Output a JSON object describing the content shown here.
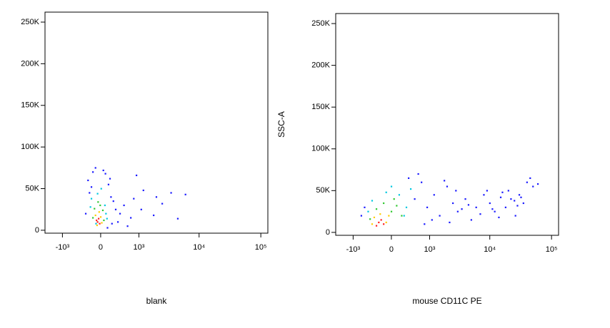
{
  "chart_data": [
    {
      "type": "scatter",
      "x_label": "blank",
      "xscale": "biexponential",
      "xlim": [
        -2000,
        130000
      ],
      "ylim": [
        -3500,
        262000
      ],
      "xticks": [
        {
          "value": -1000,
          "label": "-10³"
        },
        0,
        {
          "value": 1000,
          "label": "10³"
        },
        {
          "value": 10000,
          "label": "10⁴"
        },
        {
          "value": 100000,
          "label": "10⁵"
        }
      ],
      "yticks": [
        0,
        {
          "value": 50000,
          "label": "50K"
        },
        {
          "value": 100000,
          "label": "100K"
        },
        {
          "value": 150000,
          "label": "150K"
        },
        {
          "value": 200000,
          "label": "200K"
        },
        {
          "value": 250000,
          "label": "250K"
        }
      ],
      "series": [
        {
          "color": "#1a1aff",
          "x": [
            -250,
            -220,
            -150,
            150,
            200,
            250,
            300,
            400,
            500,
            700,
            900,
            1200,
            2000,
            3500,
            6000,
            -300,
            -100,
            50,
            180,
            350,
            600,
            1100,
            1800,
            2500,
            4500,
            130,
            90,
            -180,
            220,
            800
          ],
          "values": [
            60000,
            45000,
            70000,
            55000,
            40000,
            35000,
            25000,
            20000,
            30000,
            15000,
            66000,
            48000,
            40000,
            45000,
            43000,
            20000,
            75000,
            72000,
            62000,
            10000,
            5000,
            25000,
            18000,
            32000,
            14000,
            3000,
            68000,
            52000,
            8000,
            38000
          ]
        },
        {
          "color": "#00c8e0",
          "x": [
            -180,
            80,
            -60,
            100,
            -200,
            10,
            -90,
            120
          ],
          "values": [
            38000,
            30000,
            44000,
            20000,
            28000,
            50000,
            8000,
            14000
          ]
        },
        {
          "color": "#30c830",
          "x": [
            -120,
            40,
            -10,
            -150,
            60,
            -50
          ],
          "values": [
            26000,
            24000,
            30000,
            15000,
            12000,
            34000
          ]
        },
        {
          "color": "#ffcc00",
          "x": [
            -100,
            0,
            -30,
            -70,
            20
          ],
          "values": [
            18000,
            16000,
            22000,
            6000,
            9000
          ]
        },
        {
          "color": "#ff2020",
          "x": [
            -60,
            -40,
            -20,
            -80
          ],
          "values": [
            10000,
            14000,
            8000,
            12000
          ]
        }
      ]
    },
    {
      "type": "scatter",
      "x_label": "mouse CD11C PE",
      "y_label": "SSC-A",
      "xscale": "biexponential",
      "xlim": [
        -2000,
        130000
      ],
      "ylim": [
        -3500,
        262000
      ],
      "xticks": [
        {
          "value": -1000,
          "label": "-10³"
        },
        0,
        {
          "value": 1000,
          "label": "10³"
        },
        {
          "value": 10000,
          "label": "10⁴"
        },
        {
          "value": 100000,
          "label": "10⁵"
        }
      ],
      "yticks": [
        0,
        {
          "value": 50000,
          "label": "50K"
        },
        {
          "value": 100000,
          "label": "100K"
        },
        {
          "value": 150000,
          "label": "150K"
        },
        {
          "value": 200000,
          "label": "200K"
        },
        {
          "value": 250000,
          "label": "250K"
        }
      ],
      "series": [
        {
          "color": "#1a1aff",
          "x": [
            500,
            700,
            900,
            1200,
            1500,
            2000,
            2500,
            3000,
            4000,
            5000,
            6000,
            8000,
            10000,
            12000,
            15000,
            18000,
            20000,
            25000,
            30000,
            35000,
            40000,
            50000,
            60000,
            800,
            1100,
            1800,
            3500,
            7000,
            9000,
            14000,
            22000,
            28000,
            45000,
            -600,
            -700,
            600,
            350,
            2200,
            2800,
            4500,
            11000,
            16000,
            26000,
            32000
          ],
          "values": [
            40000,
            60000,
            30000,
            45000,
            20000,
            55000,
            35000,
            25000,
            40000,
            15000,
            30000,
            45000,
            35000,
            25000,
            42000,
            30000,
            50000,
            38000,
            45000,
            35000,
            60000,
            55000,
            58000,
            10000,
            15000,
            62000,
            28000,
            22000,
            50000,
            18000,
            40000,
            32000,
            65000,
            30000,
            20000,
            70000,
            65000,
            12000,
            50000,
            33000,
            28000,
            48000,
            20000,
            42000
          ]
        },
        {
          "color": "#00c8e0",
          "x": [
            -400,
            150,
            300,
            -100,
            400,
            0,
            250,
            -500
          ],
          "values": [
            38000,
            45000,
            30000,
            48000,
            52000,
            55000,
            20000,
            25000
          ]
        },
        {
          "color": "#30c830",
          "x": [
            -300,
            0,
            100,
            -150,
            200,
            -450,
            50
          ],
          "values": [
            28000,
            25000,
            32000,
            35000,
            20000,
            16000,
            40000
          ]
        },
        {
          "color": "#ffcc00",
          "x": [
            -350,
            -100,
            -220,
            -50,
            -400
          ],
          "values": [
            18000,
            12000,
            22000,
            20000,
            10000
          ]
        },
        {
          "color": "#ff2020",
          "x": [
            -250,
            -200,
            -150,
            -300
          ],
          "values": [
            12000,
            15000,
            10000,
            8000
          ]
        }
      ]
    }
  ]
}
